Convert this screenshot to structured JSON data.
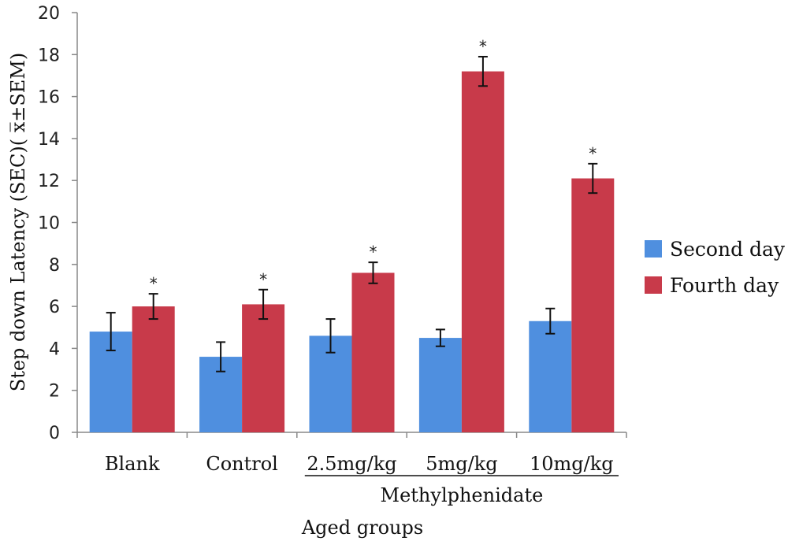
{
  "chart_data": {
    "type": "bar",
    "ylabel": "Step down Latency (SEC)( x̅±SEM)",
    "xlabel": "Aged groups",
    "group_label": "Methylphenidate",
    "ylim": [
      0,
      20
    ],
    "ytick_step": 2,
    "categories": [
      "Blank",
      "Control",
      "2.5mg/kg",
      "5mg/kg",
      "10mg/kg"
    ],
    "series": [
      {
        "name": "Second day",
        "color": "#4f8fdf",
        "values": [
          4.8,
          3.6,
          4.6,
          4.5,
          5.3
        ],
        "errors": [
          0.9,
          0.7,
          0.8,
          0.4,
          0.6
        ]
      },
      {
        "name": "Fourth day",
        "color": "#c83a4a",
        "values": [
          6.0,
          6.1,
          7.6,
          17.2,
          12.1
        ],
        "errors": [
          0.6,
          0.7,
          0.5,
          0.7,
          0.7
        ],
        "significance": [
          "*",
          "*",
          "*",
          "*",
          "*"
        ]
      }
    ],
    "legend_position": "right",
    "grid": false
  }
}
